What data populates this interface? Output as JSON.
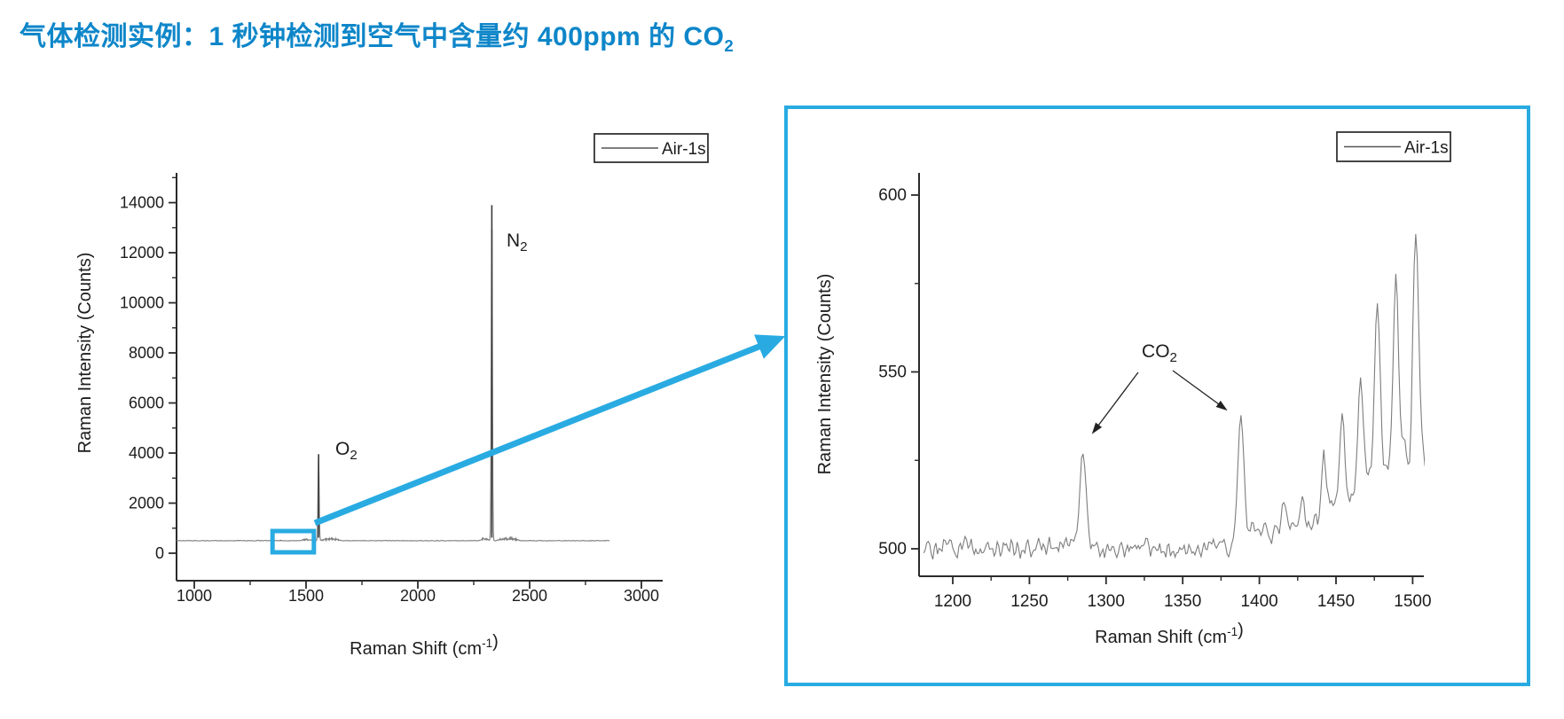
{
  "slide": {
    "title_parts": [
      {
        "t": "气体检测实例：1 秒钟检测到空气中含量约 400ppm 的 CO"
      },
      {
        "t": "2",
        "script": "sub"
      }
    ],
    "title_color": "#0E86C9"
  },
  "colors": {
    "accent_cyan": "#29ABE2",
    "trace_gray": "#7d7d7d",
    "axis_black": "#2b2b2b",
    "peak_dark": "#3a3a3a"
  },
  "chart_data": [
    {
      "id": "overview",
      "type": "line",
      "title": "",
      "legend": [
        {
          "label": "Air-1s"
        }
      ],
      "legend_position": "top-right",
      "xlabel_parts": [
        {
          "t": "Raman Shift (cm"
        },
        {
          "t": "-1",
          "script": "sup"
        },
        {
          "t": ")"
        }
      ],
      "ylabel": "Raman Intensity (Counts)",
      "xlim": [
        920,
        3100
      ],
      "ylim": [
        -1100,
        15200
      ],
      "x_major_ticks": [
        1000,
        1500,
        2000,
        2500,
        3000
      ],
      "x_minor_ticks": [
        1250,
        1750,
        2250,
        2750
      ],
      "y_major_ticks": [
        0,
        2000,
        4000,
        6000,
        8000,
        10000,
        12000,
        14000
      ],
      "y_minor_ticks": [
        1000,
        3000,
        5000,
        7000,
        9000,
        11000,
        13000,
        15000
      ],
      "grid": false,
      "baseline_counts": 500,
      "noise_amplitude_counts": 15,
      "trace_range_cm": [
        920,
        2858
      ],
      "main_peaks": [
        {
          "label_parts": [
            {
              "t": "O"
            },
            {
              "t": "2",
              "script": "sub"
            }
          ],
          "center_cm": 1556,
          "peak_counts": 3950
        },
        {
          "label_parts": [
            {
              "t": "N"
            },
            {
              "t": "2",
              "script": "sub"
            }
          ],
          "center_cm": 2331,
          "peak_counts": 13900
        }
      ],
      "weak_band_clusters": [
        {
          "center_cm": 1500,
          "halfwidth_cm": 30,
          "amp_counts": 80
        },
        {
          "center_cm": 1608,
          "halfwidth_cm": 50,
          "amp_counts": 120
        },
        {
          "center_cm": 2299,
          "halfwidth_cm": 28,
          "amp_counts": 110
        },
        {
          "center_cm": 2405,
          "halfwidth_cm": 58,
          "amp_counts": 140
        },
        {
          "center_cm": 1285,
          "halfwidth_cm": 6,
          "amp_counts": 30
        },
        {
          "center_cm": 1388,
          "halfwidth_cm": 6,
          "amp_counts": 40
        }
      ],
      "highlight_region_cm": [
        1350,
        1535
      ]
    },
    {
      "id": "zoomed",
      "type": "line",
      "title": "",
      "legend": [
        {
          "label": "Air-1s"
        }
      ],
      "legend_position": "top-right",
      "xlabel_parts": [
        {
          "t": "Raman Shift (cm"
        },
        {
          "t": "-1",
          "script": "sup"
        },
        {
          "t": ")"
        }
      ],
      "ylabel": "Raman Intensity (Counts)",
      "xlim": [
        1179,
        1507
      ],
      "ylim": [
        492,
        606
      ],
      "x_major_ticks": [
        1200,
        1250,
        1300,
        1350,
        1400,
        1450,
        1500
      ],
      "x_minor_ticks": [
        1225,
        1275,
        1325,
        1375,
        1425,
        1475
      ],
      "y_major_ticks": [
        500,
        550,
        600
      ],
      "y_minor_ticks": [
        525,
        575
      ],
      "grid": false,
      "baseline_counts": 500,
      "noise_amplitude_counts": 3,
      "trace_range_cm": [
        1181,
        1508
      ],
      "co2_label_parts": [
        {
          "t": "CO"
        },
        {
          "t": "2",
          "script": "sub"
        }
      ],
      "co2_peaks": [
        {
          "center_cm": 1285,
          "peak_counts": 527
        },
        {
          "center_cm": 1388,
          "peak_counts": 539
        }
      ],
      "comb_peaks": [
        [
          1396,
          8
        ],
        [
          1403,
          6
        ],
        [
          1410,
          5
        ],
        [
          1416,
          11
        ],
        [
          1422,
          7
        ],
        [
          1428,
          15
        ],
        [
          1435,
          9
        ],
        [
          1442,
          25
        ],
        [
          1448,
          11
        ],
        [
          1454,
          37
        ],
        [
          1460,
          14
        ],
        [
          1466,
          47
        ],
        [
          1471,
          18
        ],
        [
          1477,
          69
        ],
        [
          1483,
          22
        ],
        [
          1489,
          76
        ],
        [
          1495,
          28
        ],
        [
          1502,
          89
        ],
        [
          1507,
          24
        ]
      ]
    }
  ]
}
